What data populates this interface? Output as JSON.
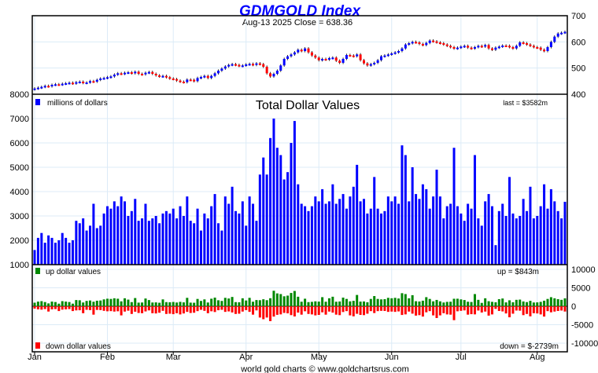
{
  "chart_data": {
    "type": "bar",
    "title": "GDMGOLD Index",
    "subtitle": "Aug-13  2025   Close = 638.36",
    "footer": "world gold charts © www.goldchartsrus.com",
    "months": [
      "Jan",
      "Feb",
      "Mar",
      "Apr",
      "May",
      "Jun",
      "Jul",
      "Aug"
    ],
    "month_start_index": [
      0,
      21,
      40,
      61,
      82,
      103,
      123,
      145
    ],
    "price": {
      "yticks": [
        700,
        600,
        500,
        400
      ],
      "ylim": [
        400,
        700
      ],
      "close": [
        422,
        425,
        428,
        432,
        430,
        436,
        438,
        437,
        440,
        442,
        444,
        441,
        446,
        448,
        443,
        445,
        450,
        448,
        455,
        460,
        462,
        465,
        468,
        475,
        480,
        478,
        482,
        484,
        480,
        486,
        478,
        476,
        482,
        485,
        478,
        472,
        468,
        470,
        465,
        460,
        458,
        452,
        448,
        446,
        456,
        455,
        450,
        462,
        466,
        470,
        462,
        470,
        480,
        490,
        498,
        506,
        512,
        515,
        512,
        508,
        510,
        514,
        516,
        512,
        518,
        515,
        505,
        480,
        468,
        478,
        490,
        510,
        535,
        545,
        552,
        560,
        570,
        565,
        575,
        560,
        548,
        540,
        530,
        535,
        532,
        538,
        540,
        528,
        520,
        535,
        550,
        548,
        545,
        552,
        530,
        518,
        510,
        515,
        520,
        530,
        545,
        548,
        552,
        556,
        560,
        565,
        575,
        590,
        595,
        600,
        598,
        592,
        588,
        596,
        605,
        602,
        598,
        595,
        590,
        585,
        580,
        575,
        578,
        582,
        585,
        578,
        575,
        580,
        585,
        582,
        588,
        575,
        570,
        578,
        582,
        586,
        585,
        580,
        575,
        585,
        598,
        595,
        590,
        585,
        580,
        578,
        570,
        565,
        580,
        600,
        620,
        632,
        635,
        638.36
      ]
    },
    "total": {
      "title": "Total Dollar Values",
      "legend": "millions of dollars",
      "last_label": "last = $3582m",
      "yticks": [
        8000,
        7000,
        6000,
        5000,
        4000,
        3000,
        2000,
        1000
      ],
      "ylim": [
        1000,
        8000
      ],
      "values": [
        1600,
        2100,
        2300,
        1900,
        2200,
        2100,
        1900,
        2000,
        2300,
        2100,
        1900,
        2000,
        2800,
        2700,
        2900,
        2400,
        2600,
        3500,
        2500,
        2600,
        3100,
        3400,
        3300,
        3600,
        3400,
        3800,
        3600,
        3000,
        3200,
        3700,
        2800,
        2900,
        3500,
        2800,
        2900,
        3000,
        2700,
        3100,
        3200,
        3100,
        3300,
        2900,
        3400,
        3000,
        3800,
        2800,
        2700,
        3300,
        2400,
        3100,
        2900,
        3400,
        3900,
        2700,
        2400,
        3800,
        3500,
        4200,
        3200,
        3100,
        3600,
        2600,
        3800,
        3500,
        2800,
        4700,
        5400,
        4700,
        6200,
        7000,
        5800,
        5500,
        4500,
        4800,
        6000,
        6900,
        4300,
        3500,
        3400,
        3200,
        3400,
        3800,
        3600,
        4100,
        3500,
        3600,
        4300,
        3500,
        3700,
        3900,
        3300,
        3800,
        4200,
        5100,
        3600,
        3700,
        3100,
        3300,
        4600,
        3300,
        3100,
        3200,
        3800,
        3600,
        3800,
        3500,
        5900,
        5500,
        3600,
        5000,
        3900,
        3700,
        4300,
        4100,
        3300,
        3800,
        4900,
        3800,
        2900,
        3400,
        3500,
        5800,
        3400,
        3100,
        2800,
        3500,
        3300,
        5500,
        2900,
        2600,
        3600,
        3900,
        3400,
        1800,
        3200,
        3500,
        3000,
        4600,
        3100,
        2900,
        3000,
        3700,
        3200,
        4200,
        2900,
        3000,
        3400,
        4300,
        3300,
        4100,
        3600,
        3200,
        2900,
        3582
      ]
    },
    "updown": {
      "up_legend": "up dollar values",
      "down_legend": "down dollar values",
      "up_label": "up = $843m",
      "down_label": "down = $-2739m",
      "yticks": [
        10000,
        5000,
        0,
        -5000,
        -10000
      ],
      "ylim": [
        -12000,
        10000
      ]
    },
    "colors": {
      "up": "#008800",
      "down": "#ff0000",
      "volume": "#0000ff",
      "title": "#0000ff",
      "grid": "#dcebf7"
    }
  }
}
